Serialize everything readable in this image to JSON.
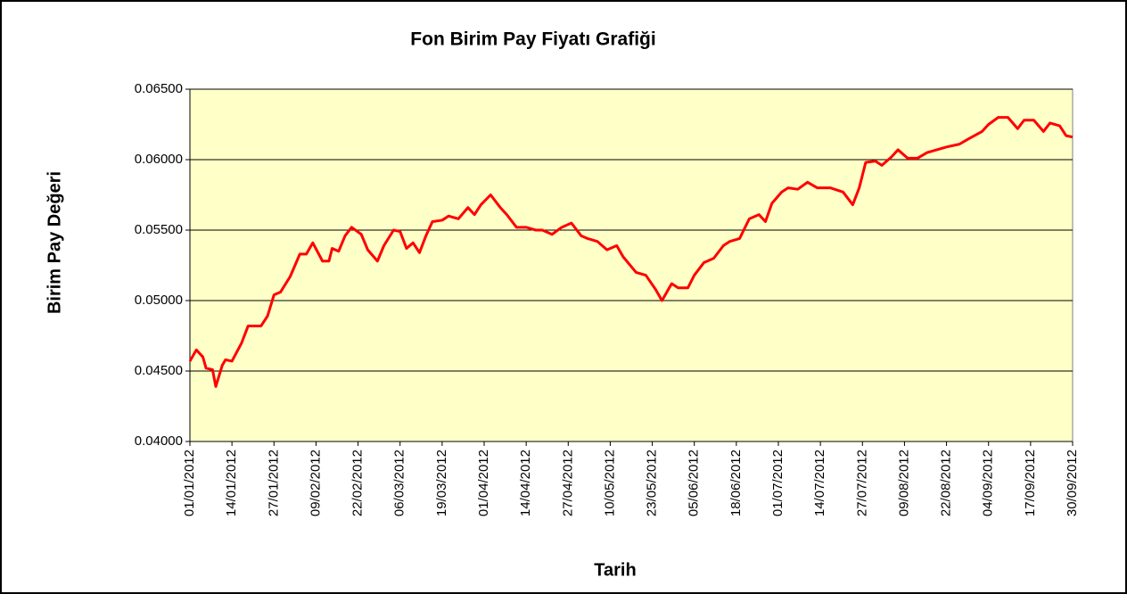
{
  "chart_data": {
    "type": "line",
    "title": "Fon Birim Pay Fiyatı Grafiği",
    "x_label": "Tarih",
    "y_label": "Birim  Pay  Değeri",
    "x": [
      "01/01/2012",
      "03/01/2012",
      "05/01/2012",
      "06/01/2012",
      "08/01/2012",
      "09/01/2012",
      "11/01/2012",
      "12/01/2012",
      "14/01/2012",
      "17/01/2012",
      "19/01/2012",
      "23/01/2012",
      "25/01/2012",
      "27/01/2012",
      "29/01/2012",
      "01/02/2012",
      "04/02/2012",
      "06/02/2012",
      "08/02/2012",
      "11/02/2012",
      "13/02/2012",
      "14/02/2012",
      "16/02/2012",
      "18/02/2012",
      "20/02/2012",
      "23/02/2012",
      "25/02/2012",
      "28/02/2012",
      "01/03/2012",
      "04/03/2012",
      "06/03/2012",
      "08/03/2012",
      "10/03/2012",
      "12/03/2012",
      "14/03/2012",
      "16/03/2012",
      "19/03/2012",
      "21/03/2012",
      "24/03/2012",
      "27/03/2012",
      "29/03/2012",
      "31/03/2012",
      "03/04/2012",
      "06/04/2012",
      "08/04/2012",
      "11/04/2012",
      "14/04/2012",
      "17/04/2012",
      "19/04/2012",
      "22/04/2012",
      "25/04/2012",
      "28/04/2012",
      "01/05/2012",
      "03/05/2012",
      "06/05/2012",
      "09/05/2012",
      "12/05/2012",
      "14/05/2012",
      "18/05/2012",
      "21/05/2012",
      "24/05/2012",
      "26/05/2012",
      "29/05/2012",
      "31/05/2012",
      "03/06/2012",
      "05/06/2012",
      "08/06/2012",
      "11/06/2012",
      "14/06/2012",
      "16/06/2012",
      "19/06/2012",
      "22/06/2012",
      "25/06/2012",
      "27/06/2012",
      "29/06/2012",
      "02/07/2012",
      "04/07/2012",
      "07/07/2012",
      "10/07/2012",
      "13/07/2012",
      "17/07/2012",
      "21/07/2012",
      "24/07/2012",
      "26/07/2012",
      "28/07/2012",
      "31/07/2012",
      "02/08/2012",
      "05/08/2012",
      "07/08/2012",
      "10/08/2012",
      "13/08/2012",
      "16/08/2012",
      "19/08/2012",
      "22/08/2012",
      "26/08/2012",
      "29/08/2012",
      "02/09/2012",
      "04/09/2012",
      "07/09/2012",
      "10/09/2012",
      "13/09/2012",
      "15/09/2012",
      "18/09/2012",
      "21/09/2012",
      "23/09/2012",
      "26/09/2012",
      "28/09/2012",
      "30/09/2012"
    ],
    "values": [
      0.0457,
      0.0465,
      0.046,
      0.0452,
      0.0451,
      0.0439,
      0.0454,
      0.0458,
      0.0457,
      0.047,
      0.0482,
      0.0482,
      0.0489,
      0.0504,
      0.0506,
      0.0517,
      0.0533,
      0.0533,
      0.0541,
      0.0528,
      0.0528,
      0.0537,
      0.0535,
      0.0546,
      0.0552,
      0.0547,
      0.0536,
      0.0528,
      0.0539,
      0.055,
      0.0549,
      0.0537,
      0.0541,
      0.0534,
      0.0546,
      0.0556,
      0.0557,
      0.056,
      0.0558,
      0.0566,
      0.0561,
      0.0568,
      0.0575,
      0.0566,
      0.0561,
      0.0552,
      0.0552,
      0.055,
      0.055,
      0.0547,
      0.0552,
      0.0555,
      0.0546,
      0.0544,
      0.0542,
      0.0536,
      0.0539,
      0.0531,
      0.052,
      0.0518,
      0.0508,
      0.05,
      0.0512,
      0.0509,
      0.0509,
      0.0518,
      0.0527,
      0.053,
      0.0539,
      0.0542,
      0.0544,
      0.0558,
      0.0561,
      0.0556,
      0.0569,
      0.0577,
      0.058,
      0.0579,
      0.0584,
      0.058,
      0.058,
      0.0577,
      0.0568,
      0.058,
      0.0598,
      0.0599,
      0.0596,
      0.0602,
      0.0607,
      0.0601,
      0.0601,
      0.0605,
      0.0607,
      0.0609,
      0.0611,
      0.0615,
      0.062,
      0.0625,
      0.063,
      0.063,
      0.0622,
      0.0628,
      0.0628,
      0.062,
      0.0626,
      0.0624,
      0.0617,
      0.0616
    ],
    "color": "#ff0000",
    "xlim": [
      "01/01/2012",
      "30/09/2012"
    ],
    "xticks": [
      "01/01/2012",
      "14/01/2012",
      "27/01/2012",
      "09/02/2012",
      "22/02/2012",
      "06/03/2012",
      "19/03/2012",
      "01/04/2012",
      "14/04/2012",
      "27/04/2012",
      "10/05/2012",
      "23/05/2012",
      "05/06/2012",
      "18/06/2012",
      "01/07/2012",
      "14/07/2012",
      "27/07/2012",
      "09/08/2012",
      "22/08/2012",
      "04/09/2012",
      "17/09/2012",
      "30/09/2012"
    ],
    "ylim": [
      0.04,
      0.065
    ],
    "yticks": [
      {
        "value": 0.04,
        "label": "0.04000"
      },
      {
        "value": 0.045,
        "label": "0.04500"
      },
      {
        "value": 0.05,
        "label": "0.05000"
      },
      {
        "value": 0.055,
        "label": "0.05500"
      },
      {
        "value": 0.06,
        "label": "0.06000"
      },
      {
        "value": 0.065,
        "label": "0.06500"
      }
    ],
    "grid": true
  }
}
